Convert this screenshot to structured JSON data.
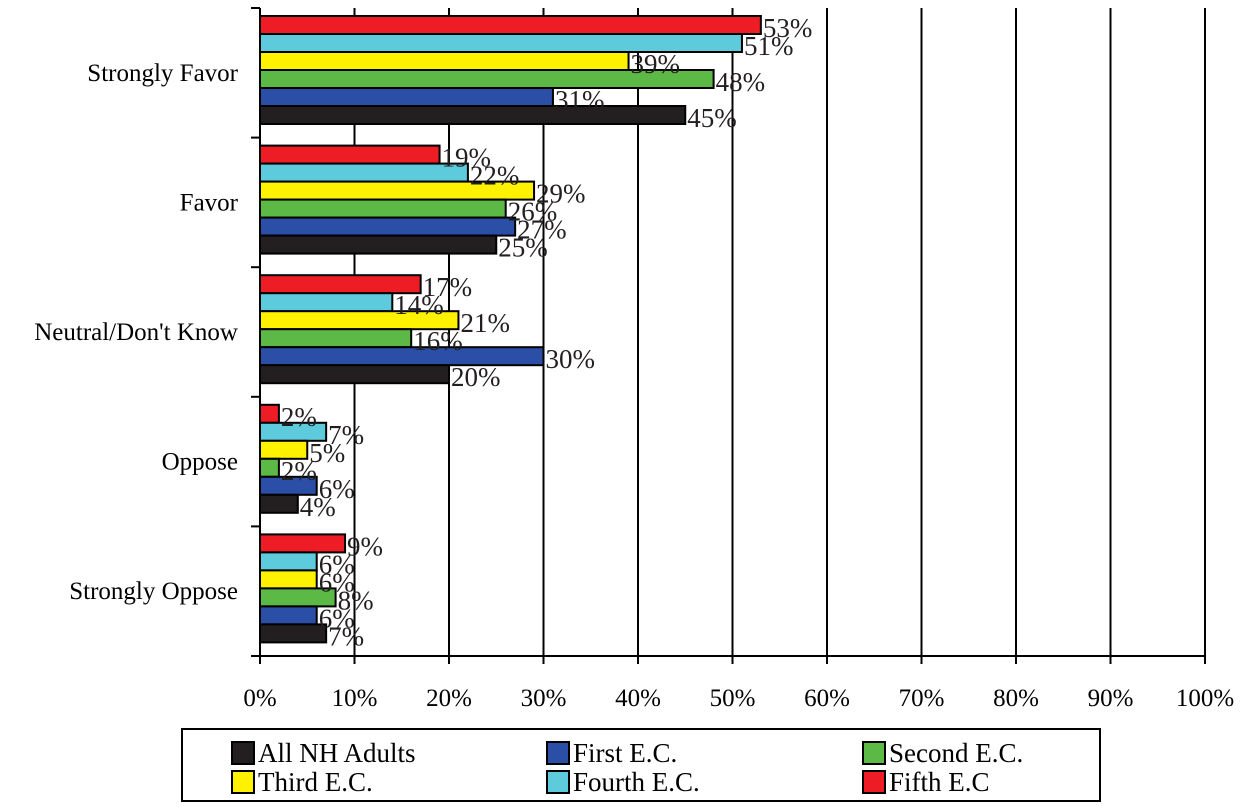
{
  "chart_data": {
    "type": "bar",
    "orientation": "horizontal",
    "title": "",
    "xlabel": "",
    "ylabel": "",
    "xlim": [
      0,
      100
    ],
    "value_suffix": "%",
    "x_ticks": [
      "0%",
      "10%",
      "20%",
      "30%",
      "40%",
      "50%",
      "60%",
      "70%",
      "80%",
      "90%",
      "100%"
    ],
    "categories": [
      "Strongly Favor",
      "Favor",
      "Neutral/Don't Know",
      "Oppose",
      "Strongly Oppose"
    ],
    "series": [
      {
        "name": "Fifth E.C",
        "color": "#ee1c25",
        "values": [
          53,
          19,
          17,
          2,
          9
        ]
      },
      {
        "name": "Fourth E.C.",
        "color": "#5ecbdc",
        "values": [
          51,
          22,
          14,
          7,
          6
        ]
      },
      {
        "name": "Third E.C.",
        "color": "#fff200",
        "values": [
          39,
          29,
          21,
          5,
          6
        ]
      },
      {
        "name": "Second E.C.",
        "color": "#5cb946",
        "values": [
          48,
          26,
          16,
          2,
          8
        ]
      },
      {
        "name": "First E.C.",
        "color": "#2b4ea6",
        "values": [
          31,
          27,
          30,
          6,
          6
        ]
      },
      {
        "name": "All NH Adults",
        "color": "#231f20",
        "values": [
          45,
          25,
          20,
          4,
          7
        ]
      }
    ],
    "grid": "vertical",
    "legend_position": "bottom",
    "legend_order": [
      "All NH Adults",
      "First E.C.",
      "Second E.C.",
      "Third E.C.",
      "Fourth E.C.",
      "Fifth E.C"
    ]
  }
}
